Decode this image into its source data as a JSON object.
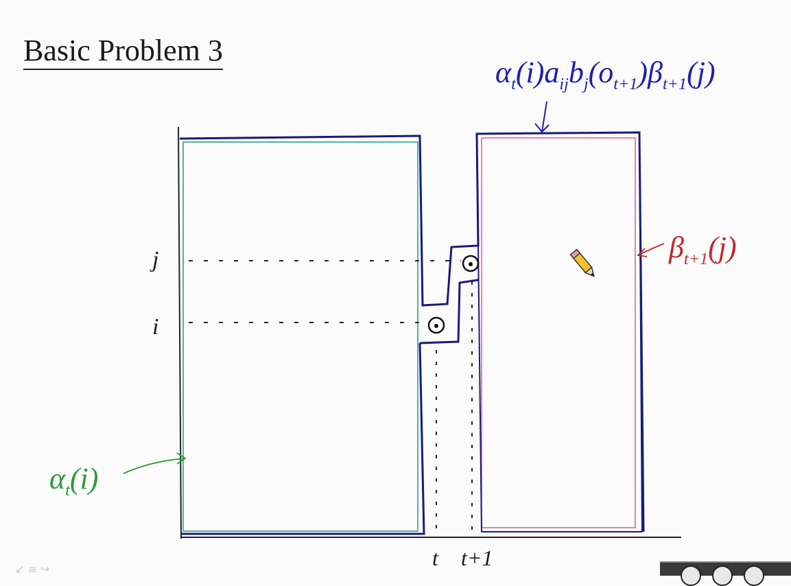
{
  "slide": {
    "title": "Basic Problem 3",
    "annotations": {
      "top_main": "α",
      "top_sub_t": "t",
      "top_rest1": "(i)a",
      "top_sub_ij": "ij",
      "top_rest2": "b",
      "top_sub_j": "j",
      "top_rest3": "(o",
      "top_sub_t1": "t+1",
      "top_rest4": ")β",
      "top_sub_t1b": "t+1",
      "top_rest5": "(j)",
      "beta_main": "β",
      "beta_sub": "t+1",
      "beta_rest": "(j)",
      "alpha_main": "α",
      "alpha_sub": "t",
      "alpha_rest": "(i)"
    },
    "axis": {
      "j": "j",
      "i": "i",
      "t": "t",
      "t_plus_1": "t+1"
    },
    "player_controls": {
      "nav_hint": "↙ ≡ ↪"
    }
  },
  "colors": {
    "blue": "#1f1fa8",
    "green": "#2e9a3a",
    "red": "#c0282e",
    "teal": "#4fb3a3",
    "pink": "#d9608a",
    "ink": "#1a1a1a"
  }
}
